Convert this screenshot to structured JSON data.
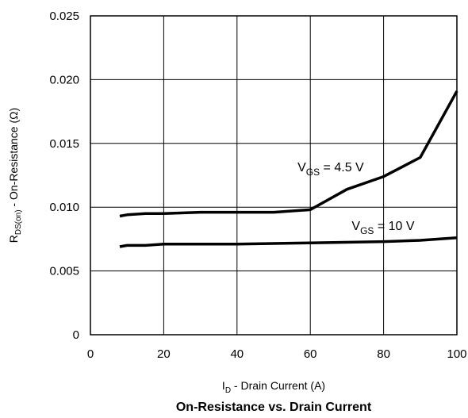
{
  "chart_data": {
    "type": "line",
    "title": "On-Resistance vs. Drain Current",
    "xlabel": {
      "main": "I",
      "sub": "D",
      "rest": " - Drain Current (A)"
    },
    "ylabel": {
      "main": "R",
      "sub": "DS(on)",
      "rest": " - On-Resistance (Ω)"
    },
    "xlim": [
      0,
      100
    ],
    "ylim": [
      0,
      0.025
    ],
    "xticks": [
      0,
      20,
      40,
      60,
      80,
      100
    ],
    "xtick_labels": [
      "0",
      "20",
      "40",
      "60",
      "80",
      "100"
    ],
    "yticks": [
      0,
      0.005,
      0.01,
      0.015,
      0.02,
      0.025
    ],
    "ytick_labels": [
      "0",
      "0.005",
      "0.010",
      "0.015",
      "0.020",
      "0.025"
    ],
    "grid": true,
    "series": [
      {
        "name": "VGS = 4.5 V",
        "label": {
          "main": "V",
          "sub": "GS",
          "rest": " = 4.5 V"
        },
        "x": [
          8,
          10,
          15,
          20,
          30,
          40,
          50,
          60,
          70,
          80,
          90,
          100
        ],
        "y": [
          0.0093,
          0.0094,
          0.0095,
          0.0095,
          0.0096,
          0.0096,
          0.0096,
          0.0098,
          0.0114,
          0.0124,
          0.0139,
          0.0191
        ]
      },
      {
        "name": "VGS = 10 V",
        "label": {
          "main": "V",
          "sub": "GS",
          "rest": " = 10 V"
        },
        "x": [
          8,
          10,
          15,
          20,
          40,
          60,
          80,
          90,
          100
        ],
        "y": [
          0.0069,
          0.007,
          0.007,
          0.0071,
          0.0071,
          0.0072,
          0.0073,
          0.0074,
          0.0076
        ]
      }
    ]
  }
}
